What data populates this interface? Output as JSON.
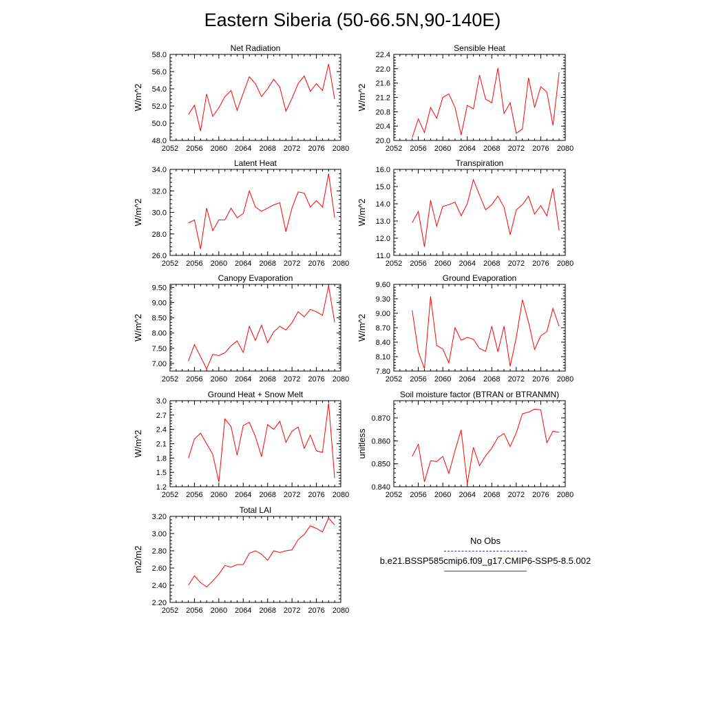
{
  "title": "Eastern Siberia (50-66.5N,90-140E)",
  "colors": {
    "series": "#ff0000",
    "obs": "#3030a0",
    "axis": "#000000"
  },
  "legend": {
    "obs_label": "No Obs",
    "model_label": "b.e21.BSSP585cmip6.f09_g17.CMIP6-SSP5-8.5.002"
  },
  "chart_data": [
    {
      "type": "line",
      "title": "Net Radiation",
      "ylabel": "W/m^2",
      "xlim": [
        2052,
        2080
      ],
      "ylim": [
        48.0,
        58.0
      ],
      "xticks": [
        "2052",
        "2056",
        "2060",
        "2064",
        "2068",
        "2072",
        "2076",
        "2080"
      ],
      "yticks": [
        "48.0",
        "50.0",
        "52.0",
        "54.0",
        "56.0",
        "58.0"
      ],
      "series": [
        {
          "x": [
            2055,
            2056,
            2057,
            2058,
            2059,
            2060,
            2061,
            2062,
            2063,
            2064,
            2065,
            2066,
            2067,
            2068,
            2069,
            2070,
            2071,
            2072,
            2073,
            2074,
            2075,
            2076,
            2077,
            2078,
            2079
          ],
          "values": [
            51.0,
            52.1,
            49.1,
            53.4,
            50.8,
            51.8,
            53.1,
            53.8,
            51.5,
            53.5,
            55.4,
            54.6,
            53.1,
            54.0,
            55.1,
            54.2,
            51.4,
            52.9,
            54.6,
            55.5,
            53.7,
            54.6,
            53.8,
            56.9,
            52.8
          ]
        }
      ]
    },
    {
      "type": "line",
      "title": "Sensible Heat",
      "ylabel": "W/m^2",
      "xlim": [
        2052,
        2080
      ],
      "ylim": [
        20.0,
        22.4
      ],
      "xticks": [
        "2052",
        "2056",
        "2060",
        "2064",
        "2068",
        "2072",
        "2076",
        "2080"
      ],
      "yticks": [
        "20.0",
        "20.4",
        "20.8",
        "21.2",
        "21.6",
        "22.0",
        "22.4"
      ],
      "series": [
        {
          "x": [
            2055,
            2056,
            2057,
            2058,
            2059,
            2060,
            2061,
            2062,
            2063,
            2064,
            2065,
            2066,
            2067,
            2068,
            2069,
            2070,
            2071,
            2072,
            2073,
            2074,
            2075,
            2076,
            2077,
            2078,
            2079
          ],
          "values": [
            20.08,
            20.6,
            20.22,
            20.92,
            20.62,
            21.2,
            21.3,
            20.92,
            20.15,
            20.98,
            20.88,
            21.82,
            21.15,
            21.05,
            22.02,
            20.75,
            21.05,
            20.2,
            20.32,
            21.75,
            20.92,
            21.5,
            21.35,
            20.42,
            21.9
          ]
        }
      ]
    },
    {
      "type": "line",
      "title": "Latent Heat",
      "ylabel": "W/m^2",
      "xlim": [
        2052,
        2080
      ],
      "ylim": [
        26.0,
        34.0
      ],
      "xticks": [
        "2052",
        "2056",
        "2060",
        "2064",
        "2068",
        "2072",
        "2076",
        "2080"
      ],
      "yticks": [
        "26.0",
        "28.0",
        "30.0",
        "32.0",
        "34.0"
      ],
      "series": [
        {
          "x": [
            2055,
            2056,
            2057,
            2058,
            2059,
            2060,
            2061,
            2062,
            2063,
            2064,
            2065,
            2066,
            2067,
            2068,
            2069,
            2070,
            2071,
            2072,
            2073,
            2074,
            2075,
            2076,
            2077,
            2078,
            2079
          ],
          "values": [
            29.0,
            29.3,
            26.6,
            30.4,
            28.3,
            29.3,
            29.3,
            30.4,
            29.5,
            29.9,
            32.0,
            30.5,
            30.1,
            30.4,
            30.7,
            30.9,
            28.2,
            30.4,
            31.9,
            31.8,
            30.5,
            31.1,
            30.5,
            33.6,
            29.5
          ]
        }
      ]
    },
    {
      "type": "line",
      "title": "Transpiration",
      "ylabel": "W/m^2",
      "xlim": [
        2052,
        2080
      ],
      "ylim": [
        11.0,
        16.0
      ],
      "xticks": [
        "2052",
        "2056",
        "2060",
        "2064",
        "2068",
        "2072",
        "2076",
        "2080"
      ],
      "yticks": [
        "11.0",
        "12.0",
        "13.0",
        "14.0",
        "15.0",
        "16.0"
      ],
      "series": [
        {
          "x": [
            2055,
            2056,
            2057,
            2058,
            2059,
            2060,
            2061,
            2062,
            2063,
            2064,
            2065,
            2066,
            2067,
            2068,
            2069,
            2070,
            2071,
            2072,
            2073,
            2074,
            2075,
            2076,
            2077,
            2078,
            2079
          ],
          "values": [
            12.9,
            13.55,
            11.5,
            14.2,
            12.7,
            13.85,
            13.95,
            14.1,
            13.3,
            14.0,
            15.4,
            14.5,
            13.65,
            13.95,
            14.45,
            13.8,
            12.2,
            13.65,
            13.95,
            14.45,
            13.4,
            13.9,
            13.3,
            14.9,
            12.45
          ]
        }
      ]
    },
    {
      "type": "line",
      "title": "Canopy Evaporation",
      "ylabel": "W/m^2",
      "xlim": [
        2052,
        2080
      ],
      "ylim": [
        6.75,
        9.6
      ],
      "xticks": [
        "2052",
        "2056",
        "2060",
        "2064",
        "2068",
        "2072",
        "2076",
        "2080"
      ],
      "yticks": [
        "7.00",
        "7.50",
        "8.00",
        "8.50",
        "9.00",
        "9.50"
      ],
      "series": [
        {
          "x": [
            2055,
            2056,
            2057,
            2058,
            2059,
            2060,
            2061,
            2062,
            2063,
            2064,
            2065,
            2066,
            2067,
            2068,
            2069,
            2070,
            2071,
            2072,
            2073,
            2074,
            2075,
            2076,
            2077,
            2078,
            2079
          ],
          "values": [
            7.08,
            7.62,
            7.22,
            6.82,
            7.3,
            7.26,
            7.35,
            7.58,
            7.74,
            7.36,
            8.22,
            7.76,
            8.26,
            7.68,
            8.04,
            8.22,
            8.1,
            8.34,
            8.7,
            8.53,
            8.78,
            8.7,
            8.58,
            9.55,
            8.35
          ]
        }
      ]
    },
    {
      "type": "line",
      "title": "Ground Evaporation",
      "ylabel": "W/m^2",
      "xlim": [
        2052,
        2080
      ],
      "ylim": [
        7.8,
        9.6
      ],
      "xticks": [
        "2052",
        "2056",
        "2060",
        "2064",
        "2068",
        "2072",
        "2076",
        "2080"
      ],
      "yticks": [
        "7.80",
        "8.10",
        "8.40",
        "8.70",
        "9.00",
        "9.30",
        "9.60"
      ],
      "series": [
        {
          "x": [
            2055,
            2056,
            2057,
            2058,
            2059,
            2060,
            2061,
            2062,
            2063,
            2064,
            2065,
            2066,
            2067,
            2068,
            2069,
            2070,
            2071,
            2072,
            2073,
            2074,
            2075,
            2076,
            2077,
            2078,
            2079
          ],
          "values": [
            9.06,
            8.2,
            7.85,
            9.35,
            8.33,
            8.26,
            7.97,
            8.7,
            8.44,
            8.5,
            8.46,
            8.27,
            8.21,
            8.73,
            8.2,
            8.73,
            7.9,
            8.5,
            9.28,
            8.82,
            8.25,
            8.53,
            8.62,
            9.1,
            8.73
          ]
        }
      ]
    },
    {
      "type": "line",
      "title": "Ground Heat + Snow Melt",
      "ylabel": "W/m^2",
      "xlim": [
        2052,
        2080
      ],
      "ylim": [
        1.2,
        3.0
      ],
      "xticks": [
        "2052",
        "2056",
        "2060",
        "2064",
        "2068",
        "2072",
        "2076",
        "2080"
      ],
      "yticks": [
        "1.2",
        "1.5",
        "1.8",
        "2.1",
        "2.4",
        "2.7",
        "3.0"
      ],
      "series": [
        {
          "x": [
            2055,
            2056,
            2057,
            2058,
            2059,
            2060,
            2061,
            2062,
            2063,
            2064,
            2065,
            2066,
            2067,
            2068,
            2069,
            2070,
            2071,
            2072,
            2073,
            2074,
            2075,
            2076,
            2077,
            2078,
            2079
          ],
          "values": [
            1.8,
            2.2,
            2.32,
            2.1,
            1.88,
            1.3,
            2.62,
            2.46,
            1.86,
            2.48,
            2.55,
            2.25,
            1.83,
            2.5,
            2.4,
            2.57,
            2.13,
            2.36,
            2.45,
            2.0,
            2.28,
            1.95,
            1.92,
            2.95,
            1.38
          ]
        }
      ]
    },
    {
      "type": "line",
      "title": "Soil moisture factor (BTRAN or BTRANMN)",
      "ylabel": "unitless",
      "xlim": [
        2052,
        2080
      ],
      "ylim": [
        0.84,
        0.8775
      ],
      "xticks": [
        "2052",
        "2056",
        "2060",
        "2064",
        "2068",
        "2072",
        "2076",
        "2080"
      ],
      "yticks": [
        "0.840",
        "0.850",
        "0.860",
        "0.870"
      ],
      "series": [
        {
          "x": [
            2055,
            2056,
            2057,
            2058,
            2059,
            2060,
            2061,
            2062,
            2063,
            2064,
            2065,
            2066,
            2067,
            2068,
            2069,
            2070,
            2071,
            2072,
            2073,
            2074,
            2075,
            2076,
            2077,
            2078,
            2079
          ],
          "values": [
            0.8532,
            0.8585,
            0.8422,
            0.8513,
            0.851,
            0.8532,
            0.8458,
            0.8558,
            0.8648,
            0.8412,
            0.8572,
            0.8492,
            0.8535,
            0.8568,
            0.8615,
            0.8632,
            0.8575,
            0.8635,
            0.8718,
            0.8725,
            0.8738,
            0.8735,
            0.8592,
            0.8642,
            0.8637
          ]
        }
      ]
    },
    {
      "type": "line",
      "title": "Total LAI",
      "ylabel": "m2/m2",
      "xlim": [
        2052,
        2080
      ],
      "ylim": [
        2.2,
        3.2
      ],
      "xticks": [
        "2052",
        "2056",
        "2060",
        "2064",
        "2068",
        "2072",
        "2076",
        "2080"
      ],
      "yticks": [
        "2.20",
        "2.40",
        "2.60",
        "2.80",
        "3.00",
        "3.20"
      ],
      "series": [
        {
          "x": [
            2055,
            2056,
            2057,
            2058,
            2059,
            2060,
            2061,
            2062,
            2063,
            2064,
            2065,
            2066,
            2067,
            2068,
            2069,
            2070,
            2071,
            2072,
            2073,
            2074,
            2075,
            2076,
            2077,
            2078,
            2079
          ],
          "values": [
            2.4,
            2.51,
            2.43,
            2.38,
            2.45,
            2.53,
            2.63,
            2.61,
            2.64,
            2.64,
            2.77,
            2.8,
            2.76,
            2.69,
            2.8,
            2.78,
            2.8,
            2.81,
            2.93,
            2.99,
            3.09,
            3.06,
            3.02,
            3.18,
            3.1
          ]
        }
      ]
    }
  ]
}
